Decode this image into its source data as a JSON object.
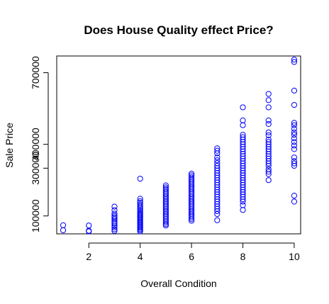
{
  "chart_data": {
    "type": "scatter",
    "title": "Does House Quality effect Price?",
    "xlabel": "Overall Condition",
    "ylabel": "Sale Price",
    "xlim": [
      0.75,
      10.25
    ],
    "ylim": [
      25000,
      770000
    ],
    "x_ticks": [
      2,
      4,
      6,
      8,
      10
    ],
    "y_ticks": [
      100000,
      300000,
      400000,
      700000
    ],
    "y_tick_labels": [
      "100000",
      "300000",
      "400000",
      "700000"
    ],
    "point_color": "#0000ff",
    "grid": false,
    "legend": "none",
    "points": [
      [
        1,
        61000
      ],
      [
        1,
        40000
      ],
      [
        2,
        60000
      ],
      [
        2,
        37900
      ],
      [
        2,
        35300
      ],
      [
        3,
        139000
      ],
      [
        3,
        124000
      ],
      [
        3,
        110000
      ],
      [
        3,
        101000
      ],
      [
        3,
        95000
      ],
      [
        3,
        87500
      ],
      [
        3,
        80000
      ],
      [
        3,
        72500
      ],
      [
        3,
        68000
      ],
      [
        3,
        60000
      ],
      [
        3,
        52000
      ],
      [
        3,
        44000
      ],
      [
        3,
        37000
      ],
      [
        4,
        256000
      ],
      [
        4,
        172000
      ],
      [
        4,
        162000
      ],
      [
        4,
        155000
      ],
      [
        4,
        147000
      ],
      [
        4,
        140000
      ],
      [
        4,
        134000
      ],
      [
        4,
        128000
      ],
      [
        4,
        122000
      ],
      [
        4,
        116000
      ],
      [
        4,
        110000
      ],
      [
        4,
        105000
      ],
      [
        4,
        100000
      ],
      [
        4,
        95000
      ],
      [
        4,
        90000
      ],
      [
        4,
        85000
      ],
      [
        4,
        80000
      ],
      [
        4,
        75000
      ],
      [
        4,
        70000
      ],
      [
        4,
        65000
      ],
      [
        4,
        60000
      ],
      [
        4,
        55000
      ],
      [
        4,
        50000
      ],
      [
        4,
        45000
      ],
      [
        4,
        40000
      ],
      [
        4,
        35000
      ],
      [
        5,
        228000
      ],
      [
        5,
        220000
      ],
      [
        5,
        213000
      ],
      [
        5,
        206000
      ],
      [
        5,
        199000
      ],
      [
        5,
        192000
      ],
      [
        5,
        185000
      ],
      [
        5,
        178000
      ],
      [
        5,
        171000
      ],
      [
        5,
        164000
      ],
      [
        5,
        157000
      ],
      [
        5,
        150000
      ],
      [
        5,
        143000
      ],
      [
        5,
        136000
      ],
      [
        5,
        129000
      ],
      [
        5,
        122000
      ],
      [
        5,
        115000
      ],
      [
        5,
        108000
      ],
      [
        5,
        101000
      ],
      [
        5,
        94000
      ],
      [
        5,
        87000
      ],
      [
        5,
        80000
      ],
      [
        5,
        73000
      ],
      [
        5,
        66000
      ],
      [
        5,
        60000
      ],
      [
        6,
        277000
      ],
      [
        6,
        270000
      ],
      [
        6,
        262000
      ],
      [
        6,
        255000
      ],
      [
        6,
        248000
      ],
      [
        6,
        241000
      ],
      [
        6,
        234000
      ],
      [
        6,
        227000
      ],
      [
        6,
        220000
      ],
      [
        6,
        213000
      ],
      [
        6,
        206000
      ],
      [
        6,
        199000
      ],
      [
        6,
        192000
      ],
      [
        6,
        185000
      ],
      [
        6,
        178000
      ],
      [
        6,
        171000
      ],
      [
        6,
        164000
      ],
      [
        6,
        157000
      ],
      [
        6,
        150000
      ],
      [
        6,
        143000
      ],
      [
        6,
        136000
      ],
      [
        6,
        129000
      ],
      [
        6,
        122000
      ],
      [
        6,
        115000
      ],
      [
        6,
        108000
      ],
      [
        6,
        101000
      ],
      [
        6,
        94000
      ],
      [
        6,
        87000
      ],
      [
        6,
        80000
      ],
      [
        7,
        383000
      ],
      [
        7,
        373000
      ],
      [
        7,
        362000
      ],
      [
        7,
        345000
      ],
      [
        7,
        333000
      ],
      [
        7,
        321000
      ],
      [
        7,
        310000
      ],
      [
        7,
        300000
      ],
      [
        7,
        290000
      ],
      [
        7,
        280000
      ],
      [
        7,
        270000
      ],
      [
        7,
        260000
      ],
      [
        7,
        250000
      ],
      [
        7,
        240000
      ],
      [
        7,
        230000
      ],
      [
        7,
        220000
      ],
      [
        7,
        210000
      ],
      [
        7,
        200000
      ],
      [
        7,
        190000
      ],
      [
        7,
        180000
      ],
      [
        7,
        170000
      ],
      [
        7,
        160000
      ],
      [
        7,
        150000
      ],
      [
        7,
        140000
      ],
      [
        7,
        130000
      ],
      [
        7,
        120000
      ],
      [
        7,
        108000
      ],
      [
        7,
        82000
      ],
      [
        8,
        555000
      ],
      [
        8,
        500000
      ],
      [
        8,
        480000
      ],
      [
        8,
        440000
      ],
      [
        8,
        430000
      ],
      [
        8,
        420000
      ],
      [
        8,
        410000
      ],
      [
        8,
        400000
      ],
      [
        8,
        390000
      ],
      [
        8,
        380000
      ],
      [
        8,
        370000
      ],
      [
        8,
        360000
      ],
      [
        8,
        350000
      ],
      [
        8,
        340000
      ],
      [
        8,
        330000
      ],
      [
        8,
        320000
      ],
      [
        8,
        310000
      ],
      [
        8,
        300000
      ],
      [
        8,
        290000
      ],
      [
        8,
        280000
      ],
      [
        8,
        270000
      ],
      [
        8,
        260000
      ],
      [
        8,
        250000
      ],
      [
        8,
        240000
      ],
      [
        8,
        230000
      ],
      [
        8,
        220000
      ],
      [
        8,
        210000
      ],
      [
        8,
        200000
      ],
      [
        8,
        190000
      ],
      [
        8,
        180000
      ],
      [
        8,
        170000
      ],
      [
        8,
        160000
      ],
      [
        8,
        145000
      ],
      [
        8,
        125000
      ],
      [
        9,
        611000
      ],
      [
        9,
        585000
      ],
      [
        9,
        555000
      ],
      [
        9,
        500000
      ],
      [
        9,
        485000
      ],
      [
        9,
        450000
      ],
      [
        9,
        438000
      ],
      [
        9,
        420000
      ],
      [
        9,
        410000
      ],
      [
        9,
        400000
      ],
      [
        9,
        390000
      ],
      [
        9,
        380000
      ],
      [
        9,
        370000
      ],
      [
        9,
        360000
      ],
      [
        9,
        350000
      ],
      [
        9,
        340000
      ],
      [
        9,
        330000
      ],
      [
        9,
        320000
      ],
      [
        9,
        310000
      ],
      [
        9,
        295000
      ],
      [
        9,
        285000
      ],
      [
        9,
        275000
      ],
      [
        9,
        250000
      ],
      [
        10,
        755000
      ],
      [
        10,
        745000
      ],
      [
        10,
        625000
      ],
      [
        10,
        565000
      ],
      [
        10,
        490000
      ],
      [
        10,
        480000
      ],
      [
        10,
        465000
      ],
      [
        10,
        450000
      ],
      [
        10,
        440000
      ],
      [
        10,
        425000
      ],
      [
        10,
        410000
      ],
      [
        10,
        395000
      ],
      [
        10,
        380000
      ],
      [
        10,
        345000
      ],
      [
        10,
        330000
      ],
      [
        10,
        320000
      ],
      [
        10,
        310000
      ],
      [
        10,
        185000
      ],
      [
        10,
        160000
      ]
    ]
  }
}
